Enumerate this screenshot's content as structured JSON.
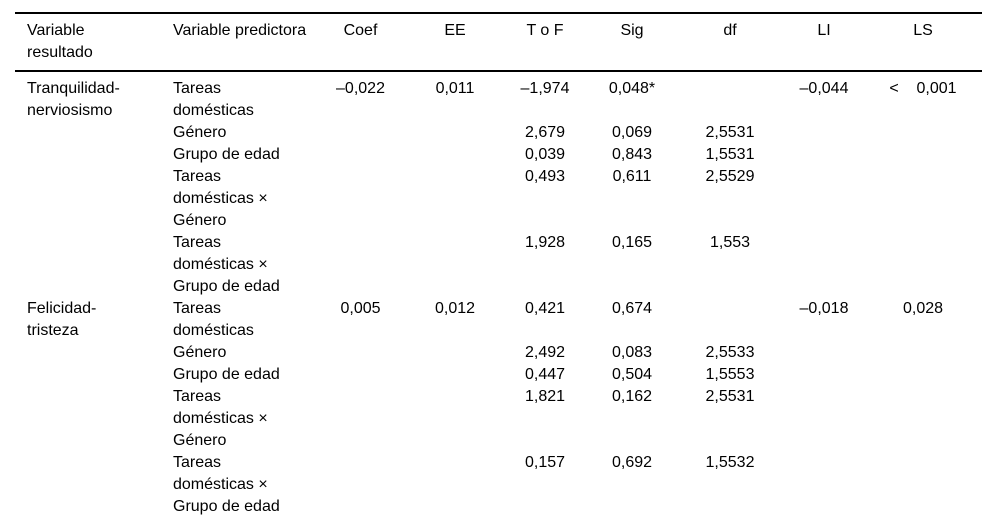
{
  "table": {
    "headers": [
      "Variable resultado",
      "Variable predictora",
      "Coef",
      "EE",
      "T o F",
      "Sig",
      "df",
      "LI",
      "LS"
    ],
    "sections": [
      {
        "outcome": "Tranquilidad-nerviosismo",
        "rows": [
          {
            "predictor": "Tareas domésticas",
            "coef": "–0,022",
            "ee": "0,011",
            "tof": "–1,974",
            "sig": "0,048*",
            "df": "",
            "li": "–0,044",
            "ls": "<    0,001"
          },
          {
            "predictor": "Género",
            "coef": "",
            "ee": "",
            "tof": "2,679",
            "sig": "0,069",
            "df": "2,5531",
            "li": "",
            "ls": ""
          },
          {
            "predictor": "Grupo de edad",
            "coef": "",
            "ee": "",
            "tof": "0,039",
            "sig": "0,843",
            "df": "1,5531",
            "li": "",
            "ls": ""
          },
          {
            "predictor": "Tareas domésticas × Género",
            "coef": "",
            "ee": "",
            "tof": "0,493",
            "sig": "0,611",
            "df": "2,5529",
            "li": "",
            "ls": ""
          },
          {
            "predictor": "Tareas domésticas × Grupo de edad",
            "coef": "",
            "ee": "",
            "tof": "1,928",
            "sig": "0,165",
            "df": "1,553",
            "li": "",
            "ls": ""
          }
        ]
      },
      {
        "outcome": "Felicidad-tristeza",
        "rows": [
          {
            "predictor": "Tareas domésticas",
            "coef": "0,005",
            "ee": "0,012",
            "tof": "0,421",
            "sig": "0,674",
            "df": "",
            "li": "–0,018",
            "ls": "0,028"
          },
          {
            "predictor": "Género",
            "coef": "",
            "ee": "",
            "tof": "2,492",
            "sig": "0,083",
            "df": "2,5533",
            "li": "",
            "ls": ""
          },
          {
            "predictor": "Grupo de edad",
            "coef": "",
            "ee": "",
            "tof": "0,447",
            "sig": "0,504",
            "df": "1,5553",
            "li": "",
            "ls": ""
          },
          {
            "predictor": "Tareas domésticas × Género",
            "coef": "",
            "ee": "",
            "tof": "1,821",
            "sig": "0,162",
            "df": "2,5531",
            "li": "",
            "ls": ""
          },
          {
            "predictor": "Tareas domésticas × Grupo de edad",
            "coef": "",
            "ee": "",
            "tof": "0,157",
            "sig": "0,692",
            "df": "1,5532",
            "li": "",
            "ls": ""
          }
        ]
      }
    ]
  }
}
